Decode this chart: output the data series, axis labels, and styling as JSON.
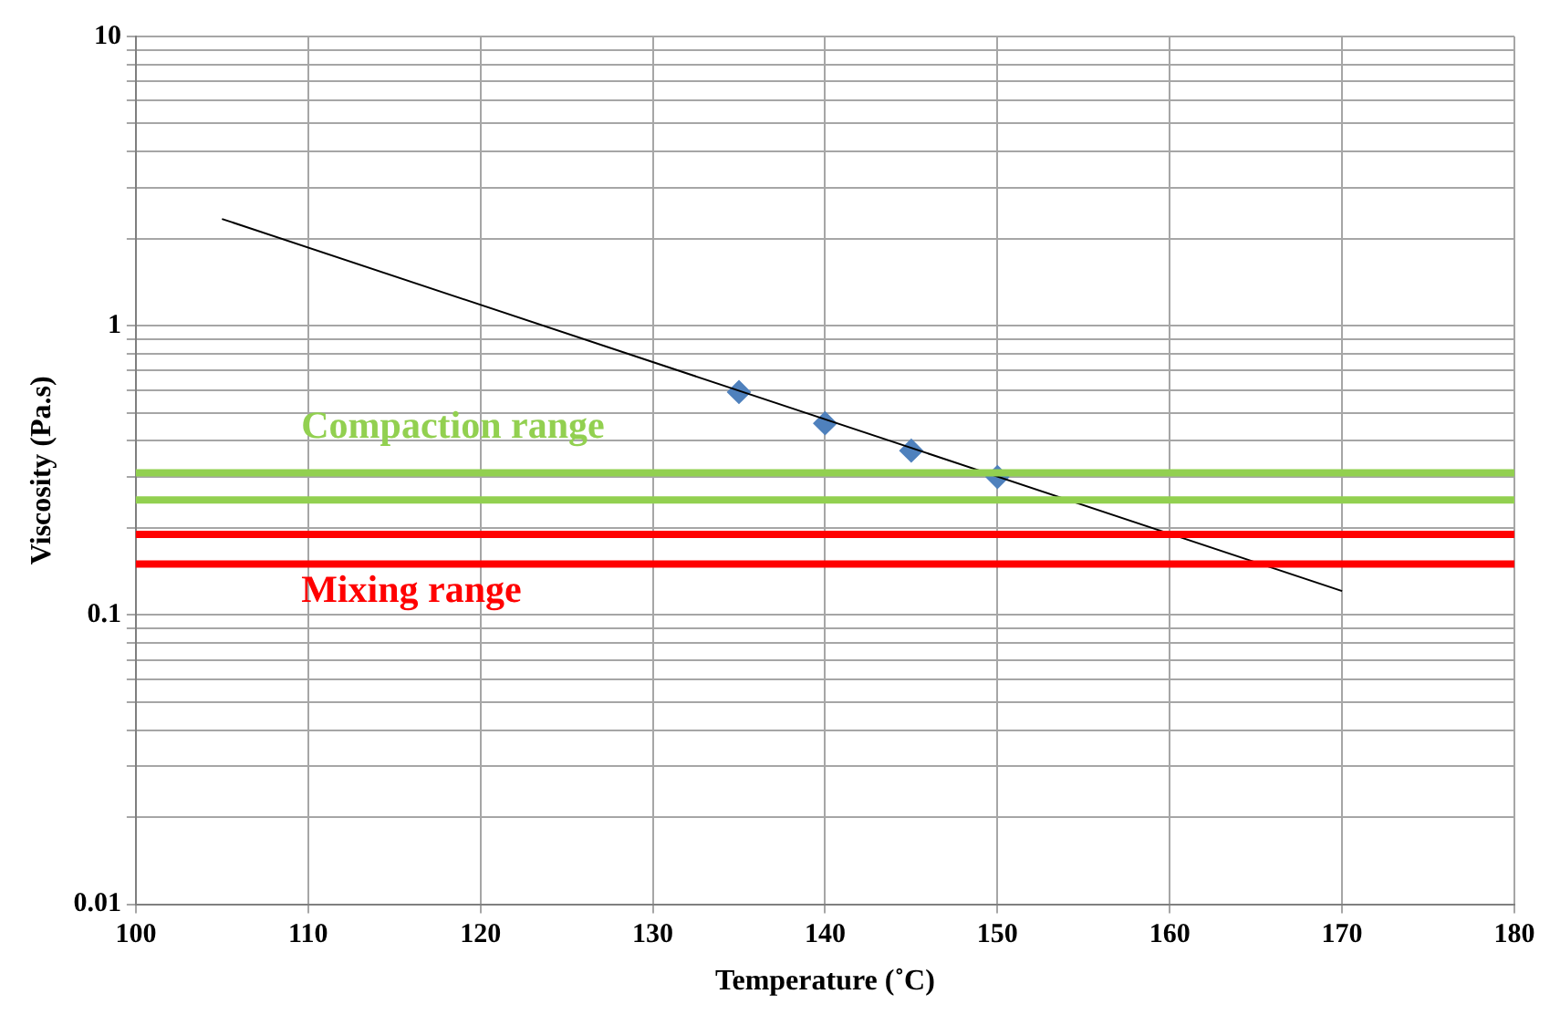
{
  "chart_data": {
    "type": "scatter",
    "xlabel": "Temperature (˚C)",
    "ylabel": "Viscosity (Pa.s)",
    "log": "y",
    "grid": true,
    "legend": false,
    "xlim": [
      100,
      180
    ],
    "xticks": [
      100,
      110,
      120,
      130,
      140,
      150,
      160,
      170,
      180
    ],
    "ylim": [
      0.01,
      10
    ],
    "yticks": [
      0.01,
      {
        "value": 0.02,
        "label": null
      },
      {
        "value": 0.03,
        "label": null
      },
      {
        "value": 0.04,
        "label": null
      },
      {
        "value": 0.05,
        "label": null
      },
      {
        "value": 0.06,
        "label": null
      },
      {
        "value": 0.07,
        "label": null
      },
      {
        "value": 0.08,
        "label": null
      },
      {
        "value": 0.09,
        "label": null
      },
      0.1,
      {
        "value": 0.2,
        "label": null
      },
      {
        "value": 0.3,
        "label": null
      },
      {
        "value": 0.4,
        "label": null
      },
      {
        "value": 0.5,
        "label": null
      },
      {
        "value": 0.6,
        "label": null
      },
      {
        "value": 0.7,
        "label": null
      },
      {
        "value": 0.8,
        "label": null
      },
      {
        "value": 0.9,
        "label": null
      },
      1,
      {
        "value": 2,
        "label": null
      },
      {
        "value": 3,
        "label": null
      },
      {
        "value": 4,
        "label": null
      },
      {
        "value": 5,
        "label": null
      },
      {
        "value": 6,
        "label": null
      },
      {
        "value": 7,
        "label": null
      },
      {
        "value": 8,
        "label": null
      },
      {
        "value": 9,
        "label": null
      },
      10
    ],
    "series": [
      {
        "type": "line",
        "color": "#000000",
        "marker": "none",
        "x": [
          105,
          170
        ],
        "values": [
          2.34,
          0.121
        ]
      },
      {
        "type": "scatter",
        "color": "#4f81bd",
        "marker": "diamond",
        "x": [
          135,
          140,
          145,
          150
        ],
        "values": [
          0.59,
          0.46,
          0.37,
          0.3
        ]
      }
    ],
    "ref_lines": [
      {
        "axis": "y",
        "value": 0.31,
        "color": "#92d050",
        "label": "Compaction range"
      },
      {
        "axis": "y",
        "value": 0.25,
        "color": "#92d050"
      },
      {
        "axis": "y",
        "value": 0.19,
        "color": "#ff0000"
      },
      {
        "axis": "y",
        "value": 0.15,
        "color": "#ff0000",
        "label": "Mixing range"
      }
    ]
  }
}
